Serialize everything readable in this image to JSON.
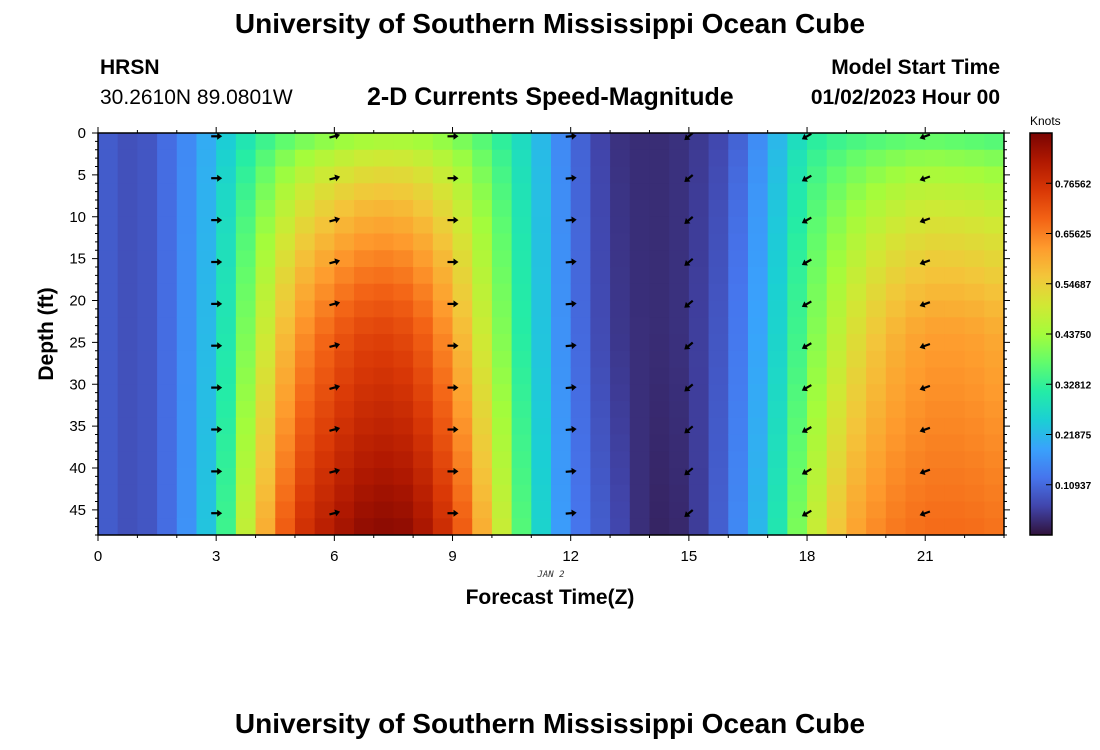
{
  "header": {
    "title": "University of Southern Mississippi Ocean Cube",
    "station": "HRSN",
    "coords": "30.2610N  89.0801W",
    "subtitle": "2-D Currents Speed-Magnitude",
    "model_start_label": "Model Start Time",
    "model_start_value": "01/02/2023 Hour 00"
  },
  "footer": {
    "title": "University of Southern Mississippi Ocean Cube"
  },
  "chart_data": {
    "type": "heatmap",
    "title": "2-D Currents Speed-Magnitude",
    "xlabel": "Forecast Time(Z)",
    "ylabel": "Depth (ft)",
    "date_label": "JAN 2",
    "xlim": [
      0,
      23
    ],
    "ylim": [
      0,
      48
    ],
    "x_ticks": [
      0,
      3,
      6,
      9,
      12,
      15,
      18,
      21
    ],
    "y_ticks": [
      0,
      5,
      10,
      15,
      20,
      25,
      30,
      35,
      40,
      45
    ],
    "colorbar": {
      "label": "Knots",
      "range": [
        0,
        0.875
      ],
      "ticks": [
        "0.10937",
        "0.21875",
        "0.32812",
        "0.43750",
        "0.54687",
        "0.65625",
        "0.76562"
      ],
      "colors": [
        "#30123b",
        "#4145ab",
        "#4675ed",
        "#39a2fc",
        "#1bcfd4",
        "#24eca6",
        "#61fc6c",
        "#a4fc3b",
        "#d1e834",
        "#f3c63a",
        "#fe9b2d",
        "#f36315",
        "#d93806",
        "#b11901",
        "#7a0402"
      ]
    },
    "hours": [
      0,
      1,
      2,
      3,
      4,
      5,
      6,
      7,
      8,
      9,
      10,
      11,
      12,
      13,
      14,
      15,
      16,
      17,
      18,
      19,
      20,
      21,
      22,
      23
    ],
    "speed_profiles_knots": [
      {
        "hour": 0,
        "surface": 0.1,
        "mid": 0.1,
        "bottom": 0.1
      },
      {
        "hour": 1,
        "surface": 0.07,
        "mid": 0.07,
        "bottom": 0.07
      },
      {
        "hour": 2,
        "surface": 0.13,
        "mid": 0.13,
        "bottom": 0.13
      },
      {
        "hour": 3,
        "surface": 0.22,
        "mid": 0.25,
        "bottom": 0.27
      },
      {
        "hour": 4,
        "surface": 0.3,
        "mid": 0.45,
        "bottom": 0.55
      },
      {
        "hour": 5,
        "surface": 0.35,
        "mid": 0.62,
        "bottom": 0.75
      },
      {
        "hour": 6,
        "surface": 0.38,
        "mid": 0.7,
        "bottom": 0.82
      },
      {
        "hour": 7,
        "surface": 0.4,
        "mid": 0.74,
        "bottom": 0.86
      },
      {
        "hour": 8,
        "surface": 0.4,
        "mid": 0.72,
        "bottom": 0.85
      },
      {
        "hour": 9,
        "surface": 0.38,
        "mid": 0.62,
        "bottom": 0.75
      },
      {
        "hour": 10,
        "surface": 0.33,
        "mid": 0.45,
        "bottom": 0.55
      },
      {
        "hour": 11,
        "surface": 0.25,
        "mid": 0.27,
        "bottom": 0.3
      },
      {
        "hour": 12,
        "surface": 0.12,
        "mid": 0.13,
        "bottom": 0.14
      },
      {
        "hour": 13,
        "surface": 0.04,
        "mid": 0.05,
        "bottom": 0.08
      },
      {
        "hour": 14,
        "surface": 0.03,
        "mid": 0.03,
        "bottom": 0.02
      },
      {
        "hour": 15,
        "surface": 0.04,
        "mid": 0.04,
        "bottom": 0.03
      },
      {
        "hour": 16,
        "surface": 0.07,
        "mid": 0.1,
        "bottom": 0.12
      },
      {
        "hour": 17,
        "surface": 0.18,
        "mid": 0.22,
        "bottom": 0.25
      },
      {
        "hour": 18,
        "surface": 0.3,
        "mid": 0.38,
        "bottom": 0.45
      },
      {
        "hour": 19,
        "surface": 0.32,
        "mid": 0.5,
        "bottom": 0.6
      },
      {
        "hour": 20,
        "surface": 0.33,
        "mid": 0.58,
        "bottom": 0.66
      },
      {
        "hour": 21,
        "surface": 0.34,
        "mid": 0.62,
        "bottom": 0.68
      },
      {
        "hour": 22,
        "surface": 0.33,
        "mid": 0.62,
        "bottom": 0.68
      },
      {
        "hour": 23,
        "surface": 0.32,
        "mid": 0.6,
        "bottom": 0.67
      }
    ],
    "vector_hours": [
      3,
      6,
      9,
      12,
      15,
      18,
      21
    ],
    "vector_depths_ft": [
      0,
      5,
      10,
      15,
      20,
      25,
      30,
      35,
      40,
      45
    ],
    "vector_direction_deg": [
      {
        "hour": 3,
        "deg": 90
      },
      {
        "hour": 6,
        "deg": 75
      },
      {
        "hour": 9,
        "deg": 90
      },
      {
        "hour": 12,
        "deg": 85
      },
      {
        "hour": 15,
        "deg": 230
      },
      {
        "hour": 18,
        "deg": 240
      },
      {
        "hour": 21,
        "deg": 250
      }
    ]
  }
}
